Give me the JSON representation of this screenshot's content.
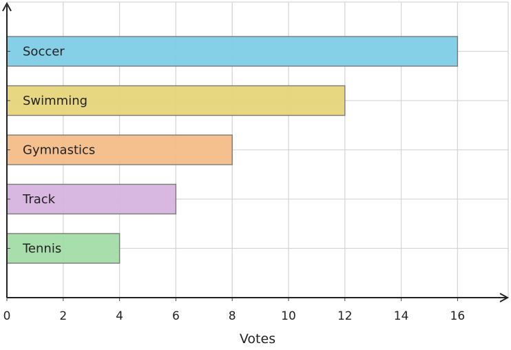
{
  "chart_data": {
    "type": "bar",
    "orientation": "horizontal",
    "categories": [
      "Soccer",
      "Swimming",
      "Gymnastics",
      "Track",
      "Tennis"
    ],
    "values": [
      16,
      12,
      8,
      6,
      4
    ],
    "colors": [
      "#7fcde6",
      "#e6d57a",
      "#f4bd88",
      "#d6b3de",
      "#a3dca6"
    ],
    "title": "",
    "xlabel": "Votes",
    "ylabel": "",
    "xlim": [
      0,
      17.8
    ],
    "xticks": [
      0,
      2,
      4,
      6,
      8,
      10,
      12,
      14,
      16
    ],
    "grid": true,
    "legend": "none"
  }
}
